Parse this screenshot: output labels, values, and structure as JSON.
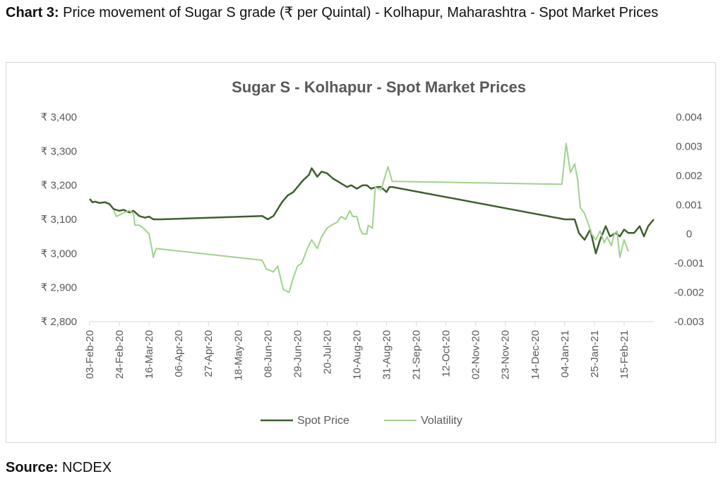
{
  "caption": {
    "label": "Chart 3:",
    "text": "Price movement of Sugar S grade (₹ per Quintal) - Kolhapur, Maharashtra - Spot Market Prices"
  },
  "source": {
    "label": "Source:",
    "text": "NCDEX"
  },
  "colors": {
    "spot": "#3f5f2c",
    "volatility": "#9fd28b",
    "axis": "#d9d9d9",
    "text": "#595959"
  },
  "chart_data": {
    "type": "line",
    "title": "Sugar S - Kolhapur - Spot Market Prices",
    "x_ticks": [
      "03-Feb-20",
      "24-Feb-20",
      "16-Mar-20",
      "06-Apr-20",
      "27-Apr-20",
      "18-May-20",
      "08-Jun-20",
      "29-Jun-20",
      "20-Jul-20",
      "10-Aug-20",
      "31-Aug-20",
      "21-Sep-20",
      "12-Oct-20",
      "02-Nov-20",
      "23-Nov-20",
      "14-Dec-20",
      "04-Jan-21",
      "25-Jan-21",
      "15-Feb-21"
    ],
    "y_left_ticks": [
      "₹ 2,800",
      "₹ 2,900",
      "₹ 3,000",
      "₹ 3,100",
      "₹ 3,200",
      "₹ 3,300",
      "₹ 3,400"
    ],
    "y_left_range": [
      2800,
      3400
    ],
    "y_right_ticks": [
      "-0.003",
      "-0.002",
      "-0.001",
      "0",
      "0.001",
      "0.002",
      "0.003",
      "0.004"
    ],
    "y_right_range": [
      -0.003,
      0.004
    ],
    "grid": false,
    "legend_position": "bottom",
    "series": [
      {
        "name": "Spot Price",
        "axis": "left",
        "points": [
          [
            "2020-02-03",
            3160
          ],
          [
            "2020-02-05",
            3150
          ],
          [
            "2020-02-07",
            3152
          ],
          [
            "2020-02-10",
            3148
          ],
          [
            "2020-02-14",
            3150
          ],
          [
            "2020-02-17",
            3145
          ],
          [
            "2020-02-20",
            3130
          ],
          [
            "2020-02-24",
            3125
          ],
          [
            "2020-02-27",
            3128
          ],
          [
            "2020-03-02",
            3120
          ],
          [
            "2020-03-05",
            3125
          ],
          [
            "2020-03-09",
            3110
          ],
          [
            "2020-03-13",
            3105
          ],
          [
            "2020-03-16",
            3108
          ],
          [
            "2020-03-19",
            3100
          ],
          [
            "2020-03-24",
            3100
          ],
          [
            "2020-06-04",
            3110
          ],
          [
            "2020-06-08",
            3100
          ],
          [
            "2020-06-12",
            3110
          ],
          [
            "2020-06-15",
            3130
          ],
          [
            "2020-06-18",
            3150
          ],
          [
            "2020-06-22",
            3170
          ],
          [
            "2020-06-26",
            3180
          ],
          [
            "2020-06-30",
            3200
          ],
          [
            "2020-07-03",
            3215
          ],
          [
            "2020-07-07",
            3230
          ],
          [
            "2020-07-09",
            3250
          ],
          [
            "2020-07-13",
            3225
          ],
          [
            "2020-07-16",
            3240
          ],
          [
            "2020-07-20",
            3235
          ],
          [
            "2020-07-24",
            3220
          ],
          [
            "2020-07-28",
            3210
          ],
          [
            "2020-08-03",
            3195
          ],
          [
            "2020-08-06",
            3200
          ],
          [
            "2020-08-10",
            3190
          ],
          [
            "2020-08-14",
            3200
          ],
          [
            "2020-08-17",
            3200
          ],
          [
            "2020-08-20",
            3190
          ],
          [
            "2020-08-24",
            3195
          ],
          [
            "2020-08-27",
            3195
          ],
          [
            "2020-08-31",
            3180
          ],
          [
            "2020-09-02",
            3195
          ],
          [
            "2020-09-04",
            3195
          ],
          [
            "2021-01-04",
            3100
          ],
          [
            "2021-01-11",
            3100
          ],
          [
            "2021-01-14",
            3060
          ],
          [
            "2021-01-18",
            3040
          ],
          [
            "2021-01-22",
            3070
          ],
          [
            "2021-01-26",
            3000
          ],
          [
            "2021-01-29",
            3040
          ],
          [
            "2021-02-02",
            3080
          ],
          [
            "2021-02-05",
            3050
          ],
          [
            "2021-02-09",
            3060
          ],
          [
            "2021-02-12",
            3050
          ],
          [
            "2021-02-15",
            3070
          ],
          [
            "2021-02-18",
            3060
          ],
          [
            "2021-02-22",
            3060
          ],
          [
            "2021-02-26",
            3080
          ],
          [
            "2021-03-01",
            3050
          ],
          [
            "2021-03-04",
            3080
          ],
          [
            "2021-03-08",
            3100
          ]
        ]
      },
      {
        "name": "Volatility",
        "axis": "right",
        "points": [
          [
            "2020-02-20",
            0.0008
          ],
          [
            "2020-02-22",
            0.0006
          ],
          [
            "2020-02-26",
            0.0007
          ],
          [
            "2020-03-02",
            0.0008
          ],
          [
            "2020-03-05",
            0.0007
          ],
          [
            "2020-03-06",
            0.0003
          ],
          [
            "2020-03-09",
            0.0003
          ],
          [
            "2020-03-12",
            0.0002
          ],
          [
            "2020-03-16",
            0.0
          ],
          [
            "2020-03-18",
            -0.0005
          ],
          [
            "2020-03-19",
            -0.0008
          ],
          [
            "2020-03-21",
            -0.0005
          ],
          [
            "2020-06-04",
            -0.0009
          ],
          [
            "2020-06-07",
            -0.0012
          ],
          [
            "2020-06-12",
            -0.0013
          ],
          [
            "2020-06-15",
            -0.0011
          ],
          [
            "2020-06-19",
            -0.0019
          ],
          [
            "2020-06-23",
            -0.002
          ],
          [
            "2020-06-26",
            -0.0015
          ],
          [
            "2020-06-29",
            -0.0011
          ],
          [
            "2020-07-02",
            -0.001
          ],
          [
            "2020-07-06",
            -0.0005
          ],
          [
            "2020-07-09",
            -0.0002
          ],
          [
            "2020-07-13",
            -0.0005
          ],
          [
            "2020-07-16",
            -0.0001
          ],
          [
            "2020-07-20",
            0.0002
          ],
          [
            "2020-07-23",
            0.0003
          ],
          [
            "2020-07-27",
            0.0004
          ],
          [
            "2020-07-30",
            0.0006
          ],
          [
            "2020-08-02",
            0.0005
          ],
          [
            "2020-08-05",
            0.0008
          ],
          [
            "2020-08-07",
            0.0006
          ],
          [
            "2020-08-10",
            0.0006
          ],
          [
            "2020-08-12",
            0.0002
          ],
          [
            "2020-08-14",
            0.0
          ],
          [
            "2020-08-17",
            0.0
          ],
          [
            "2020-08-18",
            0.0003
          ],
          [
            "2020-08-21",
            0.0002
          ],
          [
            "2020-08-23",
            0.0016
          ],
          [
            "2020-08-27",
            0.0015
          ],
          [
            "2020-09-01",
            0.0023
          ],
          [
            "2020-09-04",
            0.0018
          ],
          [
            "2021-01-02",
            0.0017
          ],
          [
            "2021-01-05",
            0.0031
          ],
          [
            "2021-01-08",
            0.0021
          ],
          [
            "2021-01-11",
            0.0024
          ],
          [
            "2021-01-13",
            0.0019
          ],
          [
            "2021-01-15",
            0.0009
          ],
          [
            "2021-01-18",
            0.0007
          ],
          [
            "2021-01-21",
            0.0003
          ],
          [
            "2021-01-23",
            0.0
          ],
          [
            "2021-01-26",
            -0.0002
          ],
          [
            "2021-01-29",
            0.0001
          ],
          [
            "2021-02-01",
            -0.0003
          ],
          [
            "2021-02-03",
            -0.0001
          ],
          [
            "2021-02-06",
            -0.0004
          ],
          [
            "2021-02-08",
            0.0
          ],
          [
            "2021-02-10",
            0.0001
          ],
          [
            "2021-02-12",
            -0.0008
          ],
          [
            "2021-02-15",
            -0.0002
          ],
          [
            "2021-02-18",
            -0.0006
          ]
        ]
      }
    ]
  }
}
